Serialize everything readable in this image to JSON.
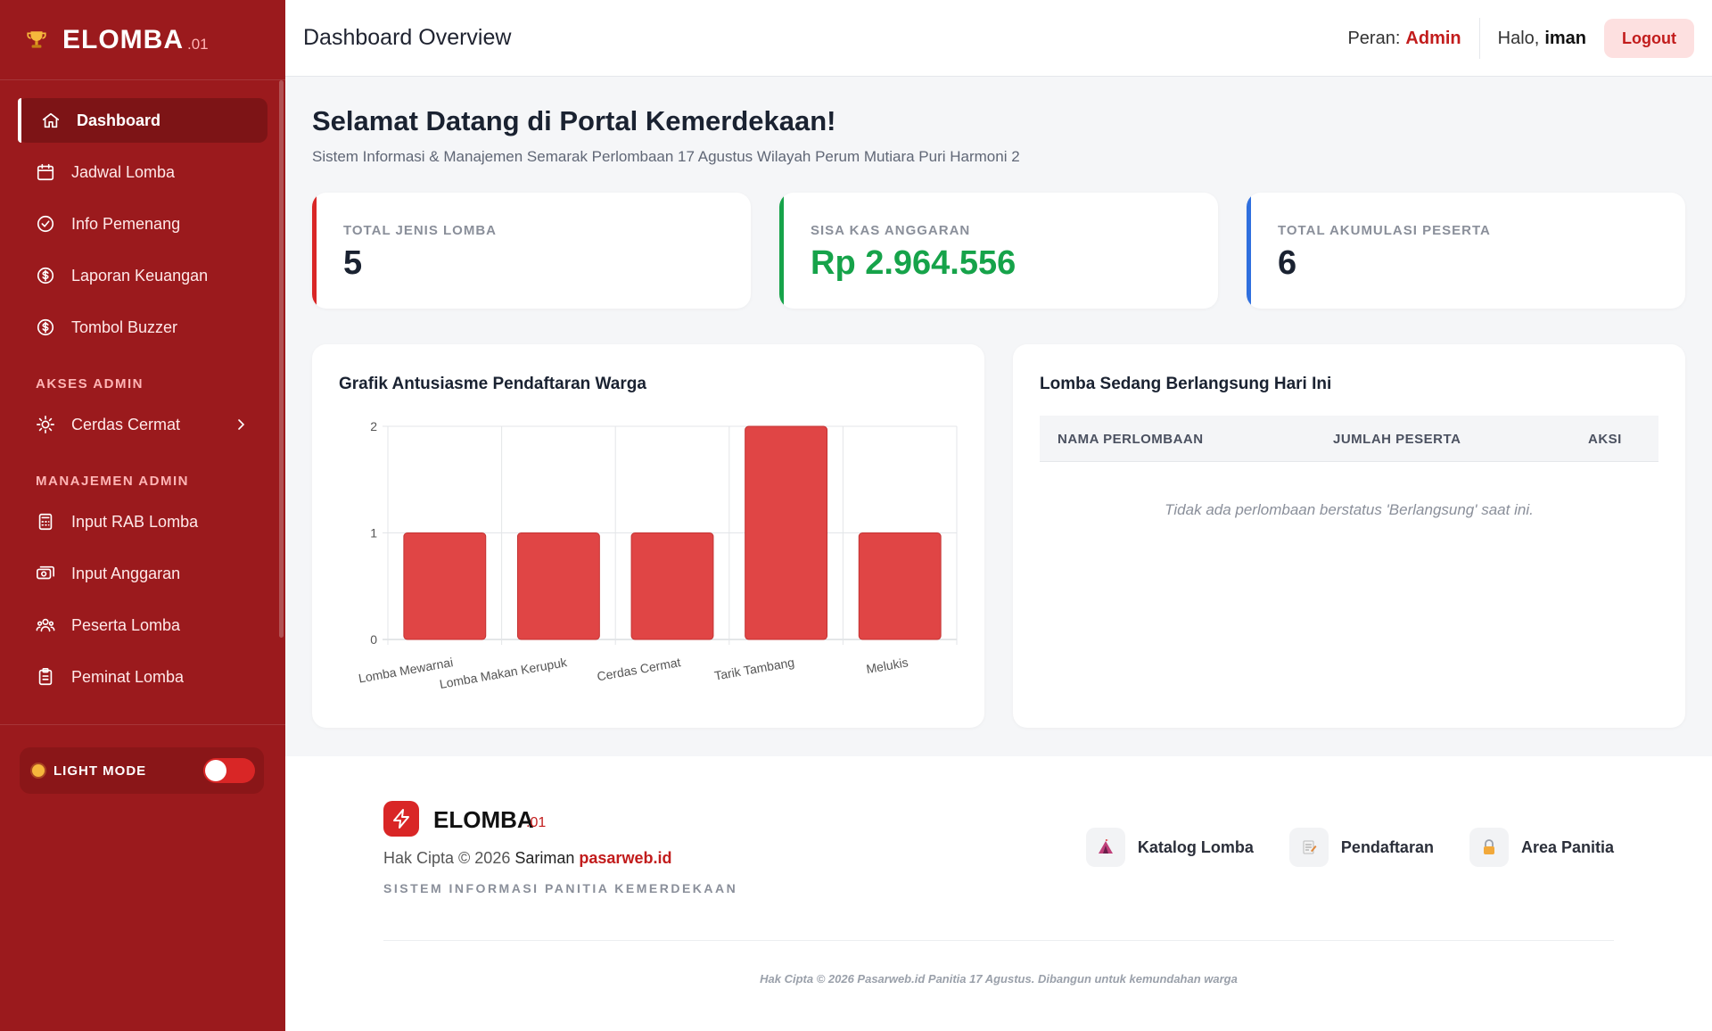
{
  "brand": {
    "name": "ELOMBA",
    "version": ".01"
  },
  "sidebar": {
    "items": [
      {
        "label": "Dashboard",
        "icon": "home-icon",
        "active": true
      },
      {
        "label": "Jadwal Lomba",
        "icon": "calendar-icon"
      },
      {
        "label": "Info Pemenang",
        "icon": "check-circle-icon"
      },
      {
        "label": "Laporan Keuangan",
        "icon": "dollar-circle-icon"
      },
      {
        "label": "Tombol Buzzer",
        "icon": "dollar-circle-icon"
      }
    ],
    "akses_label": "AKSES ADMIN",
    "akses_items": [
      {
        "label": "Cerdas Cermat",
        "icon": "lightbulb-icon"
      }
    ],
    "manajemen_label": "MANAJEMEN ADMIN",
    "manajemen_items": [
      {
        "label": "Input RAB Lomba",
        "icon": "calculator-icon"
      },
      {
        "label": "Input Anggaran",
        "icon": "money-icon"
      },
      {
        "label": "Peserta Lomba",
        "icon": "users-icon"
      },
      {
        "label": "Peminat Lomba",
        "icon": "clipboard-icon"
      }
    ],
    "mode_label": "LIGHT MODE"
  },
  "header": {
    "title": "Dashboard Overview",
    "role_prefix": "Peran:",
    "role": "Admin",
    "hello_prefix": "Halo,",
    "user": "iman",
    "logout_label": "Logout"
  },
  "welcome": {
    "title": "Selamat Datang di Portal Kemerdekaan!",
    "subtitle": "Sistem Informasi & Manajemen Semarak Perlombaan 17 Agustus Wilayah Perum Mutiara Puri Harmoni 2"
  },
  "stats": [
    {
      "label": "TOTAL JENIS LOMBA",
      "value": "5"
    },
    {
      "label": "SISA KAS ANGGARAN",
      "value": "Rp 2.964.556"
    },
    {
      "label": "TOTAL AKUMULASI PESERTA",
      "value": "6"
    }
  ],
  "chart_title": "Grafik Antusiasme Pendaftaran Warga",
  "chart_data": {
    "type": "bar",
    "title": "",
    "categories": [
      "Lomba Mewarnai",
      "Lomba Makan Kerupuk",
      "Cerdas Cermat",
      "Tarik Tambang",
      "Melukis"
    ],
    "values": [
      1,
      1,
      1,
      2,
      1
    ],
    "xlabel": "",
    "ylabel": "",
    "ylim": [
      0,
      2
    ],
    "yticks": [
      0,
      1,
      2
    ],
    "grid": true,
    "color": "#e04545"
  },
  "live": {
    "title": "Lomba Sedang Berlangsung Hari Ini",
    "columns": [
      "NAMA PERLOMBAAN",
      "JUMLAH PESERTA",
      "AKSI"
    ],
    "empty": "Tidak ada perlombaan berstatus 'Berlangsung' saat ini."
  },
  "footer": {
    "name": "ELOMBA",
    "version": ".01",
    "copy_prefix": "Hak Cipta © 2026",
    "copy_who": "Sariman",
    "copy_site": "pasarweb.id",
    "tagline": "SISTEM INFORMASI PANITIA KEMERDEKAAN",
    "links": [
      {
        "label": "Katalog Lomba",
        "icon": "tent-icon"
      },
      {
        "label": "Pendaftaran",
        "icon": "memo-icon"
      },
      {
        "label": "Area Panitia",
        "icon": "lock-icon"
      }
    ],
    "bottom": "Hak Cipta © 2026 Pasarweb.id Panitia 17 Agustus. Dibangun untuk kemundahan warga"
  },
  "colors": {
    "primary": "#9b1a1d",
    "accent": "#d92626",
    "green": "#16a34a",
    "blue": "#2f6fde"
  }
}
